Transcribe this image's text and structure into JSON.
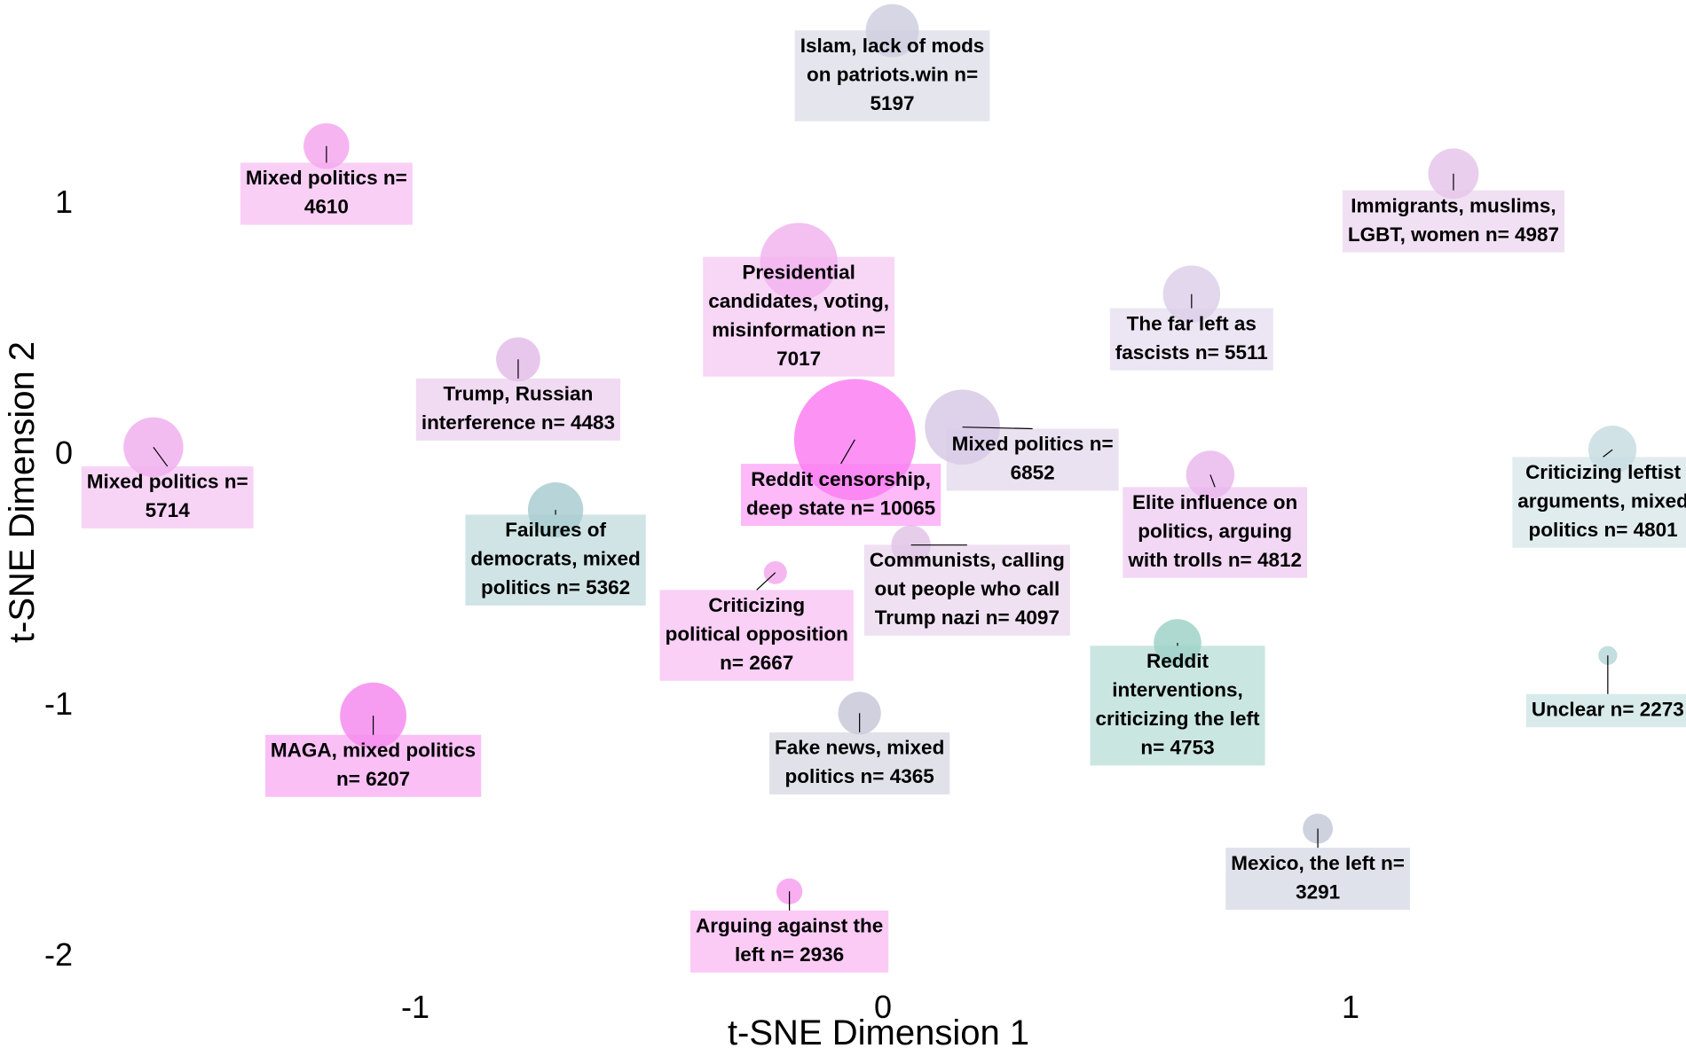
{
  "chart_data": {
    "type": "scatter",
    "title": "",
    "xlabel": "t-SNE Dimension 1",
    "ylabel": "t-SNE Dimension 2",
    "xlim": [
      -1.75,
      1.6
    ],
    "ylim": [
      -2.1,
      1.8
    ],
    "xticks": [
      -1,
      0,
      1
    ],
    "xtick_labels": [
      "-1",
      "0",
      "1"
    ],
    "yticks": [
      -2,
      -1,
      0,
      1
    ],
    "ytick_labels": [
      "-2",
      "-1",
      "0",
      "1"
    ],
    "grid": false,
    "legend": "none",
    "points": [
      {
        "x": 0.02,
        "y": 1.68,
        "n": 5197,
        "lines": [
          "Islam, lack of mods",
          "on patriots.win n=",
          "5197"
        ],
        "color": "#cfcfe0",
        "lx": 0.02,
        "ly": 1.5
      },
      {
        "x": -1.19,
        "y": 1.22,
        "n": 4610,
        "lines": [
          "Mixed politics n=",
          "4610"
        ],
        "color": "#f5a8ee",
        "lx": -1.19,
        "ly": 1.03
      },
      {
        "x": 1.22,
        "y": 1.11,
        "n": 4987,
        "lines": [
          "Immigrants, muslims,",
          "LGBT, women n= 4987"
        ],
        "color": "#e6c6ea",
        "lx": 1.22,
        "ly": 0.92
      },
      {
        "x": -0.18,
        "y": 0.76,
        "n": 7017,
        "lines": [
          "Presidential",
          "candidates, voting,",
          "misinformation n=",
          "7017"
        ],
        "color": "#f2b4ee",
        "lx": -0.18,
        "ly": 0.54
      },
      {
        "x": 0.66,
        "y": 0.63,
        "n": 5511,
        "lines": [
          "The far left as",
          "fascists n= 5511"
        ],
        "color": "#ddd0ea",
        "lx": 0.66,
        "ly": 0.45
      },
      {
        "x": -0.78,
        "y": 0.37,
        "n": 4483,
        "lines": [
          "Trump, Russian",
          "interference n= 4483"
        ],
        "color": "#e4bdea",
        "lx": -0.78,
        "ly": 0.17
      },
      {
        "x": -1.56,
        "y": 0.02,
        "n": 5714,
        "lines": [
          "Mixed politics n=",
          "5714"
        ],
        "color": "#f1b0ee",
        "lx": -1.53,
        "ly": -0.18
      },
      {
        "x": -0.06,
        "y": 0.05,
        "n": 10065,
        "lines": [
          "Reddit censorship,",
          "deep state n= 10065"
        ],
        "color": "#fb80f2",
        "lx": -0.09,
        "ly": -0.17
      },
      {
        "x": 0.17,
        "y": 0.1,
        "n": 6852,
        "lines": [
          "Mixed politics n=",
          "6852"
        ],
        "color": "#d8cae6",
        "lx": 0.32,
        "ly": -0.03
      },
      {
        "x": 0.7,
        "y": -0.09,
        "n": 4812,
        "lines": [
          "Elite influence on",
          "politics, arguing",
          "with trolls n= 4812"
        ],
        "color": "#eab8ec",
        "lx": 0.71,
        "ly": -0.32
      },
      {
        "x": 1.56,
        "y": 0.01,
        "n": 4801,
        "lines": [
          "Criticizing leftist",
          "arguments, mixed",
          "politics n= 4801"
        ],
        "color": "#c8dde2",
        "lx": 1.54,
        "ly": -0.2
      },
      {
        "x": -0.7,
        "y": -0.23,
        "n": 5362,
        "lines": [
          "Failures of",
          "democrats, mixed",
          "politics n= 5362"
        ],
        "color": "#aacdd1",
        "lx": -0.7,
        "ly": -0.43
      },
      {
        "x": 0.06,
        "y": -0.37,
        "n": 4097,
        "lines": [
          "Communists, calling",
          "out people who call",
          "Trump nazi n= 4097"
        ],
        "color": "#e2c6e8",
        "lx": 0.18,
        "ly": -0.55
      },
      {
        "x": -0.23,
        "y": -0.48,
        "n": 2667,
        "lines": [
          "Criticizing",
          "political opposition",
          "n= 2667"
        ],
        "color": "#f5aaee",
        "lx": -0.27,
        "ly": -0.73
      },
      {
        "x": 0.63,
        "y": -0.76,
        "n": 4753,
        "lines": [
          "Reddit",
          "interventions,",
          "criticizing the left",
          "n= 4753"
        ],
        "color": "#9fd2c8",
        "lx": 0.63,
        "ly": -1.01
      },
      {
        "x": 1.55,
        "y": -0.81,
        "n": 2273,
        "lines": [
          "Unclear n= 2273"
        ],
        "color": "#b8d8d8",
        "lx": 1.55,
        "ly": -1.03
      },
      {
        "x": -1.09,
        "y": -1.05,
        "n": 6207,
        "lines": [
          "MAGA, mixed politics",
          "n= 6207"
        ],
        "color": "#f58cee",
        "lx": -1.09,
        "ly": -1.25
      },
      {
        "x": -0.05,
        "y": -1.04,
        "n": 4365,
        "lines": [
          "Fake news, mixed",
          "politics n= 4365"
        ],
        "color": "#c8c8d8",
        "lx": -0.05,
        "ly": -1.24
      },
      {
        "x": 0.93,
        "y": -1.5,
        "n": 3291,
        "lines": [
          "Mexico, the left n=",
          "3291"
        ],
        "color": "#c4cad8",
        "lx": 0.93,
        "ly": -1.7
      },
      {
        "x": -0.2,
        "y": -1.75,
        "n": 2936,
        "lines": [
          "Arguing against the",
          "left n= 2936"
        ],
        "color": "#f7a0ee",
        "lx": -0.2,
        "ly": -1.95
      }
    ]
  }
}
